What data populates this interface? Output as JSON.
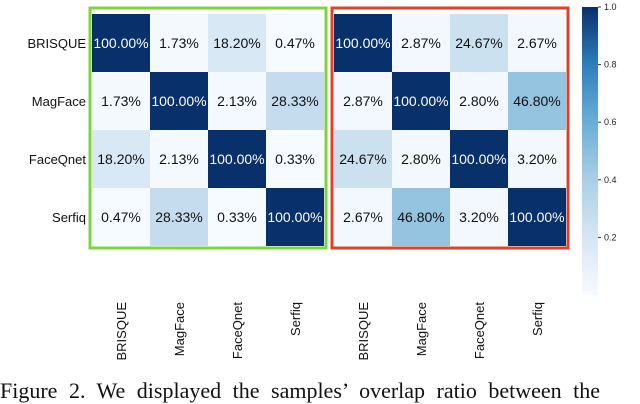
{
  "chart_data": [
    {
      "type": "heatmap",
      "frame_color": "#7ed43c",
      "rows": [
        "BRISQUE",
        "MagFace",
        "FaceQnet",
        "Serfiq"
      ],
      "cols": [
        "BRISQUE",
        "MagFace",
        "FaceQnet",
        "Serfiq"
      ],
      "labels": [
        [
          "100.00%",
          "1.73%",
          "18.20%",
          "0.47%"
        ],
        [
          "1.73%",
          "100.00%",
          "2.13%",
          "28.33%"
        ],
        [
          "18.20%",
          "2.13%",
          "100.00%",
          "0.33%"
        ],
        [
          "0.47%",
          "28.33%",
          "0.33%",
          "100.00%"
        ]
      ],
      "values": [
        [
          1.0,
          0.0173,
          0.182,
          0.0047
        ],
        [
          0.0173,
          1.0,
          0.0213,
          0.2833
        ],
        [
          0.182,
          0.0213,
          1.0,
          0.0033
        ],
        [
          0.0047,
          0.2833,
          0.0033,
          1.0
        ]
      ]
    },
    {
      "type": "heatmap",
      "frame_color": "#e0402a",
      "rows": [
        "BRISQUE",
        "MagFace",
        "FaceQnet",
        "Serfiq"
      ],
      "cols": [
        "BRISQUE",
        "MagFace",
        "FaceQnet",
        "Serfiq"
      ],
      "labels": [
        [
          "100.00%",
          "2.87%",
          "24.67%",
          "2.67%"
        ],
        [
          "2.87%",
          "100.00%",
          "2.80%",
          "46.80%"
        ],
        [
          "24.67%",
          "2.80%",
          "100.00%",
          "3.20%"
        ],
        [
          "2.67%",
          "46.80%",
          "3.20%",
          "100.00%"
        ]
      ],
      "values": [
        [
          1.0,
          0.0287,
          0.2467,
          0.0267
        ],
        [
          0.0287,
          1.0,
          0.028,
          0.468
        ],
        [
          0.2467,
          0.028,
          1.0,
          0.032
        ],
        [
          0.0267,
          0.468,
          0.032,
          1.0
        ]
      ]
    }
  ],
  "colorbar": {
    "ticks": [
      "1.0",
      "0.8",
      "0.6",
      "0.4",
      "0.2"
    ],
    "tick_values": [
      1.0,
      0.8,
      0.6,
      0.4,
      0.2
    ],
    "range": [
      0,
      1
    ],
    "low_color": "#f7fbff",
    "high_color": "#08306b"
  },
  "caption": "Figure 2. We displayed the samples’ overlap ratio between the"
}
